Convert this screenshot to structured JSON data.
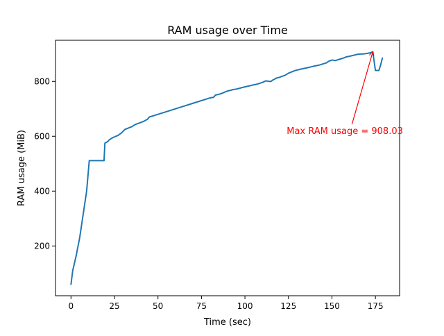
{
  "chart_data": {
    "type": "line",
    "title": "RAM usage over Time",
    "xlabel": "Time (sec)",
    "ylabel": "RAM usage (MiB)",
    "xlim": [
      -8.9,
      188.9
    ],
    "ylim": [
      18.5,
      950.0
    ],
    "xticks": [
      0,
      25,
      50,
      75,
      100,
      125,
      150,
      175
    ],
    "xtick_labels": [
      "0",
      "25",
      "50",
      "75",
      "100",
      "125",
      "150",
      "175"
    ],
    "yticks": [
      200,
      400,
      600,
      800
    ],
    "ytick_labels": [
      "200",
      "400",
      "600",
      "800"
    ],
    "grid": false,
    "legend": null,
    "colors": {
      "line": "#1f77b4",
      "annotation": "#ff0000",
      "axes": "#000000",
      "background": "#ffffff"
    },
    "series": [
      {
        "color": "#1f77b4",
        "x": [
          0,
          1,
          3,
          5,
          7,
          9,
          10.5,
          19,
          19.5,
          21,
          22,
          24,
          27,
          29,
          31,
          33,
          35,
          37,
          40,
          42,
          44,
          45,
          50,
          60,
          70,
          80,
          82,
          83,
          85,
          87,
          88,
          90,
          92,
          93,
          95,
          97,
          98,
          100,
          102,
          104,
          107,
          110,
          112,
          114,
          115,
          116,
          117,
          118,
          120,
          121,
          123,
          125,
          127,
          129,
          131,
          133,
          136,
          138,
          140,
          143,
          145,
          147,
          148,
          150,
          152,
          155,
          157,
          158,
          161,
          163,
          165,
          167,
          168,
          170,
          172,
          173.5,
          175,
          176,
          177,
          178,
          179
        ],
        "y": [
          60,
          110,
          165,
          230,
          315,
          400,
          511,
          511,
          575,
          580,
          587,
          595,
          603,
          612,
          625,
          630,
          635,
          643,
          650,
          655,
          662,
          670,
          680,
          700,
          720,
          740,
          742,
          750,
          753,
          757,
          760,
          765,
          768,
          770,
          772,
          775,
          777,
          780,
          783,
          786,
          790,
          796,
          802,
          800,
          800,
          805,
          808,
          812,
          815,
          818,
          822,
          830,
          835,
          840,
          843,
          846,
          850,
          853,
          856,
          860,
          864,
          868,
          873,
          878,
          876,
          882,
          886,
          889,
          893,
          896,
          899,
          900,
          900,
          902,
          904,
          908.03,
          840,
          840,
          840,
          860,
          885
        ]
      }
    ],
    "annotations": [
      {
        "text": "Max RAM usage = 908.03",
        "arrow_to": [
          173.5,
          908.03
        ],
        "text_at": [
          124,
          608
        ],
        "color": "#ff0000"
      }
    ]
  }
}
